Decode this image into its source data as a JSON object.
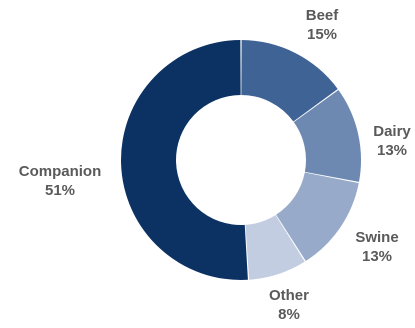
{
  "chart_data": {
    "type": "pie",
    "donut": true,
    "categories": [
      "Beef",
      "Dairy",
      "Swine",
      "Other",
      "Companion"
    ],
    "values": [
      15,
      13,
      13,
      8,
      51
    ],
    "value_labels": [
      "15%",
      "13%",
      "13%",
      "8%",
      "51%"
    ],
    "colors": [
      "#3f6395",
      "#6d89b2",
      "#97aac9",
      "#c3cde1",
      "#0c3263"
    ],
    "legend": "none"
  }
}
